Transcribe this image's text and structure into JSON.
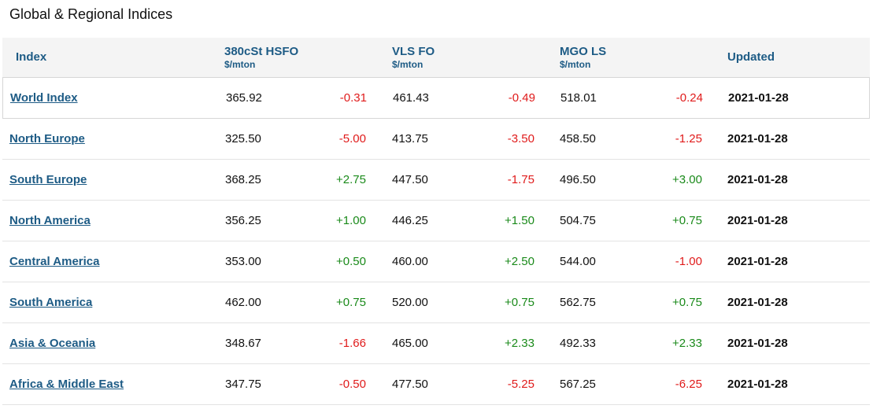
{
  "title": "Global & Regional Indices",
  "columns": {
    "index": "Index",
    "hsfo": {
      "label": "380cSt HSFO",
      "unit": "$/mton"
    },
    "vlsfo": {
      "label": "VLS FO",
      "unit": "$/mton"
    },
    "mgo": {
      "label": "MGO LS",
      "unit": "$/mton"
    },
    "updated": "Updated"
  },
  "rows": [
    {
      "name": "World Index",
      "hsfo": "365.92",
      "hsfo_chg": "-0.31",
      "vlsfo": "461.43",
      "vlsfo_chg": "-0.49",
      "mgo": "518.01",
      "mgo_chg": "-0.24",
      "updated": "2021-01-28"
    },
    {
      "name": "North Europe",
      "hsfo": "325.50",
      "hsfo_chg": "-5.00",
      "vlsfo": "413.75",
      "vlsfo_chg": "-3.50",
      "mgo": "458.50",
      "mgo_chg": "-1.25",
      "updated": "2021-01-28"
    },
    {
      "name": "South Europe",
      "hsfo": "368.25",
      "hsfo_chg": "+2.75",
      "vlsfo": "447.50",
      "vlsfo_chg": "-1.75",
      "mgo": "496.50",
      "mgo_chg": "+3.00",
      "updated": "2021-01-28"
    },
    {
      "name": "North America",
      "hsfo": "356.25",
      "hsfo_chg": "+1.00",
      "vlsfo": "446.25",
      "vlsfo_chg": "+1.50",
      "mgo": "504.75",
      "mgo_chg": "+0.75",
      "updated": "2021-01-28"
    },
    {
      "name": "Central America",
      "hsfo": "353.00",
      "hsfo_chg": "+0.50",
      "vlsfo": "460.00",
      "vlsfo_chg": "+2.50",
      "mgo": "544.00",
      "mgo_chg": "-1.00",
      "updated": "2021-01-28"
    },
    {
      "name": "South America",
      "hsfo": "462.00",
      "hsfo_chg": "+0.75",
      "vlsfo": "520.00",
      "vlsfo_chg": "+0.75",
      "mgo": "562.75",
      "mgo_chg": "+0.75",
      "updated": "2021-01-28"
    },
    {
      "name": "Asia & Oceania",
      "hsfo": "348.67",
      "hsfo_chg": "-1.66",
      "vlsfo": "465.00",
      "vlsfo_chg": "+2.33",
      "mgo": "492.33",
      "mgo_chg": "+2.33",
      "updated": "2021-01-28"
    },
    {
      "name": "Africa & Middle East",
      "hsfo": "347.75",
      "hsfo_chg": "-0.50",
      "vlsfo": "477.50",
      "vlsfo_chg": "-5.25",
      "mgo": "567.25",
      "mgo_chg": "-6.25",
      "updated": "2021-01-28"
    }
  ],
  "colors": {
    "negative": "#e01b1b",
    "positive": "#1a8a1a",
    "header_text": "#1d5b85"
  }
}
